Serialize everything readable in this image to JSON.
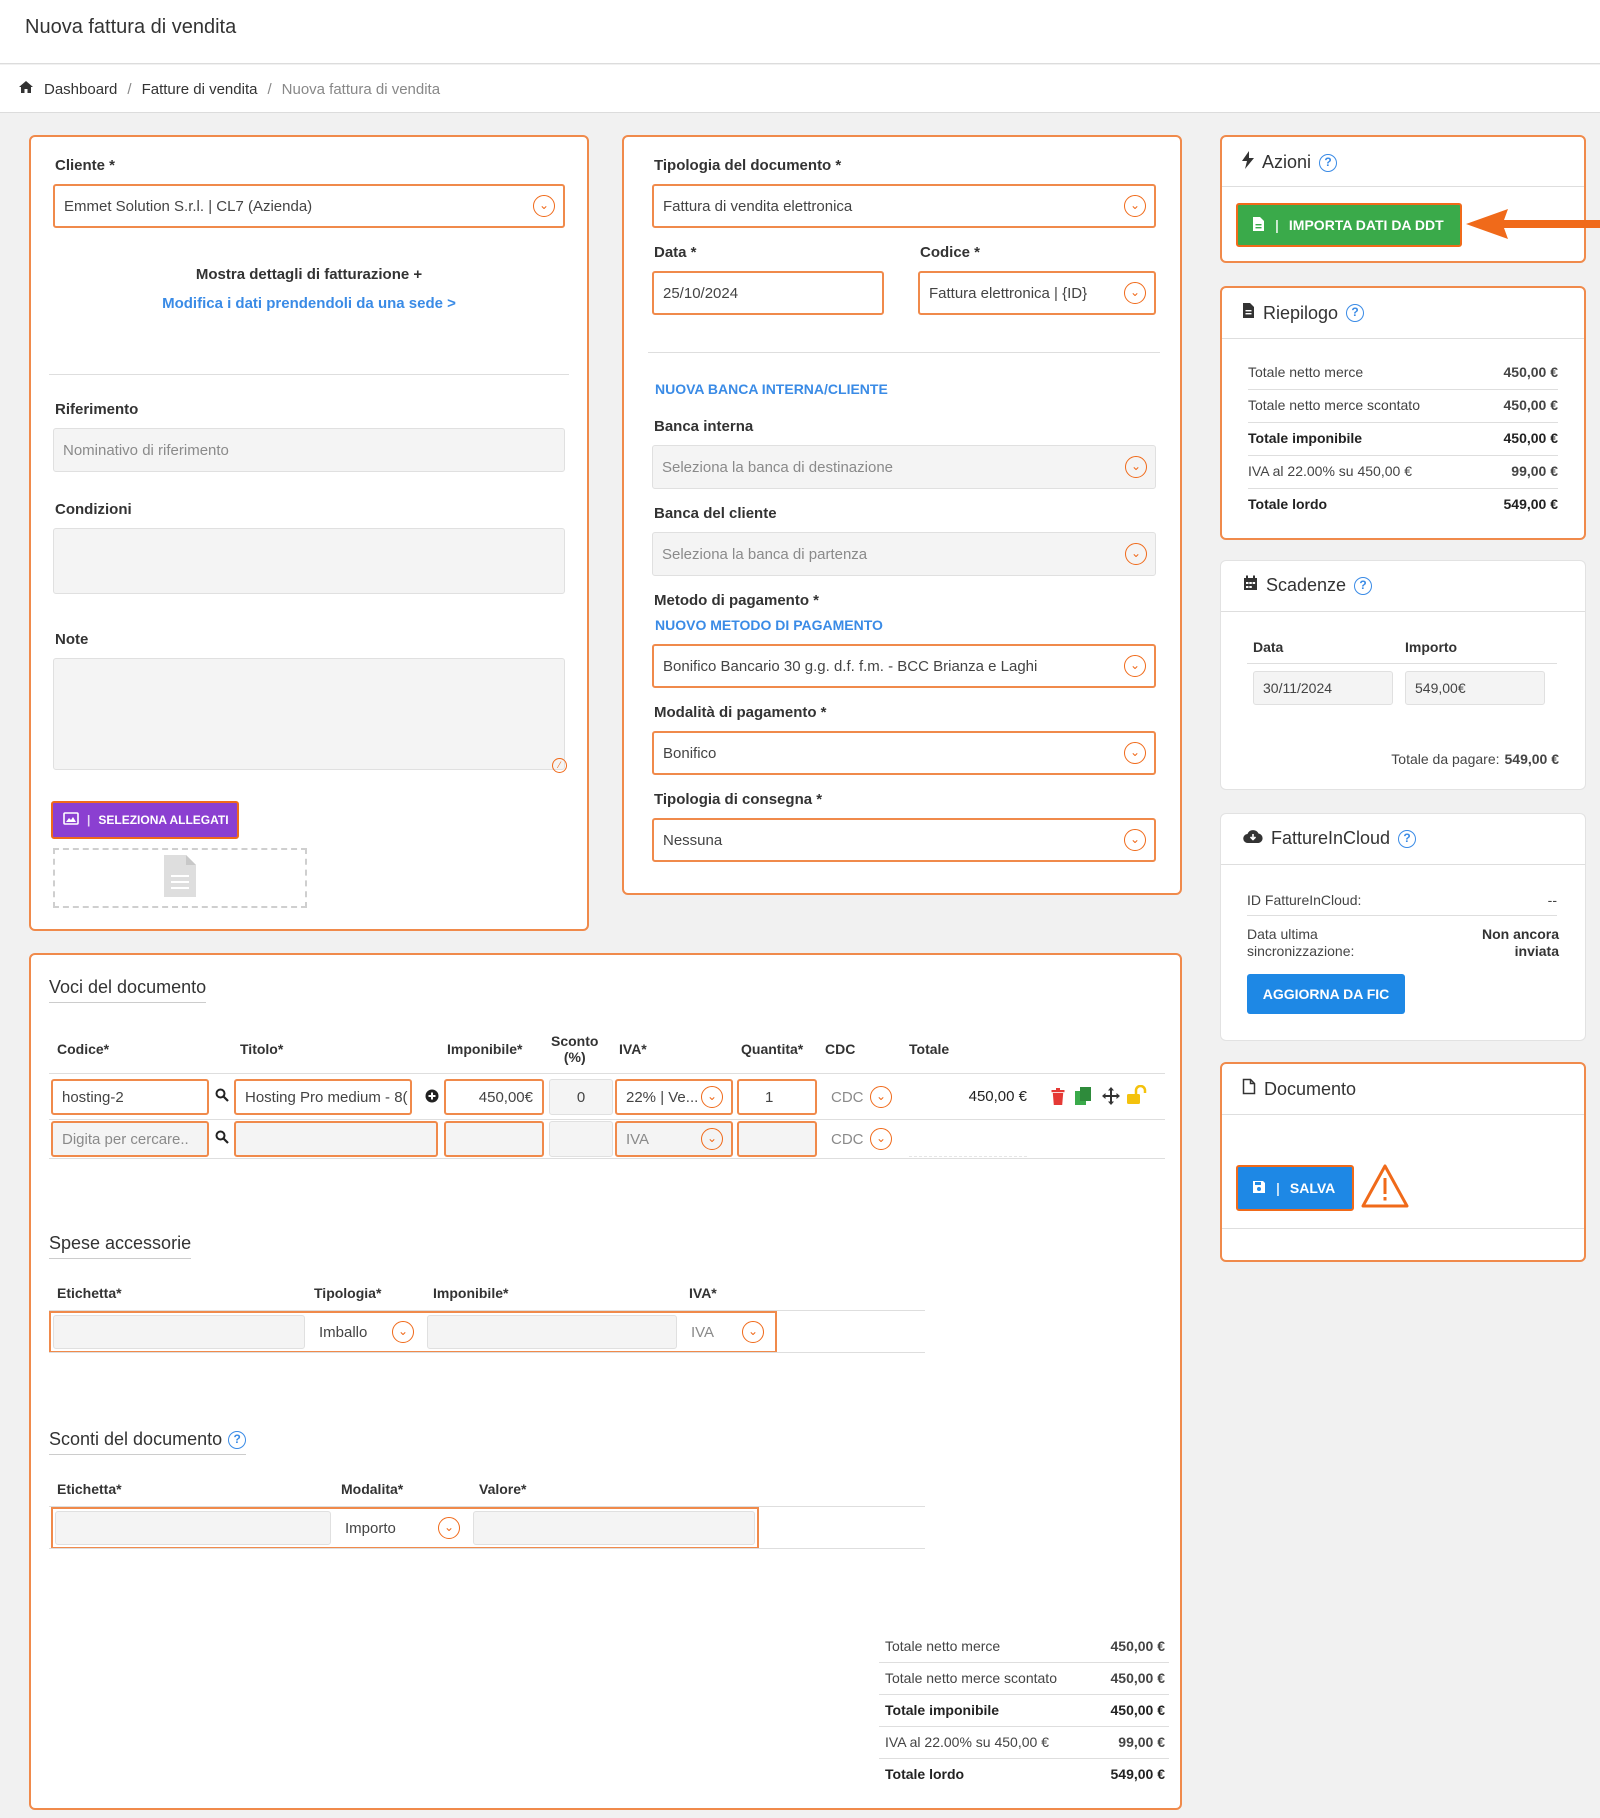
{
  "page": {
    "title": "Nuova fattura di vendita"
  },
  "breadcrumb": {
    "home": "Dashboard",
    "list": "Fatture di vendita",
    "current": "Nuova fattura di vendita"
  },
  "cliente": {
    "label": "Cliente *",
    "value": "Emmet Solution S.r.l. | CL7 (Azienda)",
    "show_billing": "Mostra dettagli di fatturazione +",
    "edit_from_site": "Modifica i dati prendendoli da una sede >",
    "riferimento_label": "Riferimento",
    "riferimento_placeholder": "Nominativo di riferimento",
    "condizioni_label": "Condizioni",
    "note_label": "Note",
    "attach_button": "SELEZIONA ALLEGATI"
  },
  "documento_info": {
    "tipologia_label": "Tipologia del documento *",
    "tipologia_value": "Fattura di vendita elettronica",
    "data_label": "Data *",
    "data_value": "25/10/2024",
    "codice_label": "Codice *",
    "codice_value": "Fattura elettronica | {ID}",
    "new_bank_link": "NUOVA BANCA INTERNA/CLIENTE",
    "banca_interna_label": "Banca interna",
    "banca_interna_placeholder": "Seleziona la banca di destinazione",
    "banca_cliente_label": "Banca del cliente",
    "banca_cliente_placeholder": "Seleziona la banca di partenza",
    "metodo_label": "Metodo di pagamento *",
    "new_method_link": "NUOVO METODO DI PAGAMENTO",
    "metodo_value": "Bonifico Bancario 30 g.g. d.f. f.m. - BCC Brianza e Laghi",
    "modalita_label": "Modalità di pagamento *",
    "modalita_value": "Bonifico",
    "consegna_label": "Tipologia di consegna *",
    "consegna_value": "Nessuna"
  },
  "azioni": {
    "title": "Azioni",
    "import_button": "IMPORTA DATI DA DDT"
  },
  "riepilogo": {
    "title": "Riepilogo",
    "rows": [
      {
        "label": "Totale netto merce",
        "value": "450,00 €"
      },
      {
        "label": "Totale netto merce scontato",
        "value": "450,00 €"
      },
      {
        "label": "Totale imponibile",
        "value": "450,00 €"
      },
      {
        "label": "IVA al 22.00% su 450,00 €",
        "value": "99,00 €"
      },
      {
        "label": "Totale lordo",
        "value": "549,00 €"
      }
    ]
  },
  "scadenze": {
    "title": "Scadenze",
    "col_data": "Data",
    "col_importo": "Importo",
    "data_value": "30/11/2024",
    "importo_value": "549,00€",
    "total_label": "Totale da pagare:",
    "total_value": "549,00 €"
  },
  "fic": {
    "title": "FattureInCloud",
    "id_label": "ID FattureInCloud:",
    "id_value": "--",
    "sync_label_1": "Data ultima",
    "sync_label_2": "sincronizzazione:",
    "sync_value_1": "Non ancora",
    "sync_value_2": "inviata",
    "update_button": "AGGIORNA DA FIC"
  },
  "documento_box": {
    "title": "Documento",
    "save_button": "SALVA"
  },
  "voci": {
    "title": "Voci del documento",
    "headers": [
      "Codice*",
      "Titolo*",
      "Imponibile*",
      "Sconto",
      "(%)",
      "IVA*",
      "Quantita*",
      "CDC",
      "Totale"
    ],
    "row1": {
      "codice": "hosting-2",
      "titolo": "Hosting Pro medium - 8(",
      "imponibile": "450,00€",
      "sconto": "0",
      "iva": "22% | Ve...",
      "quantita": "1",
      "cdc": "CDC",
      "totale": "450,00 €"
    },
    "row2": {
      "codice_placeholder": "Digita per cercare..",
      "iva": "IVA",
      "cdc": "CDC"
    }
  },
  "spese": {
    "title": "Spese accessorie",
    "headers": [
      "Etichetta*",
      "Tipologia*",
      "Imponibile*",
      "IVA*"
    ],
    "tipologia": "Imballo",
    "iva": "IVA"
  },
  "sconti": {
    "title": "Sconti del documento",
    "headers": [
      "Etichetta*",
      "Modalita*",
      "Valore*"
    ],
    "modalita": "Importo"
  },
  "totali": {
    "rows": [
      {
        "label": "Totale netto merce",
        "value": "450,00 €"
      },
      {
        "label": "Totale netto merce scontato",
        "value": "450,00 €"
      },
      {
        "label": "Totale imponibile",
        "value": "450,00 €"
      },
      {
        "label": "IVA al 22.00% su 450,00 €",
        "value": "99,00 €"
      },
      {
        "label": "Totale lordo",
        "value": "549,00 €"
      }
    ]
  },
  "colors": {
    "accent_orange": "#f08a4b",
    "green": "#3aaa4a",
    "blue": "#1e88e5",
    "purple": "#8b3fd1",
    "link_blue": "#3a8be6"
  }
}
